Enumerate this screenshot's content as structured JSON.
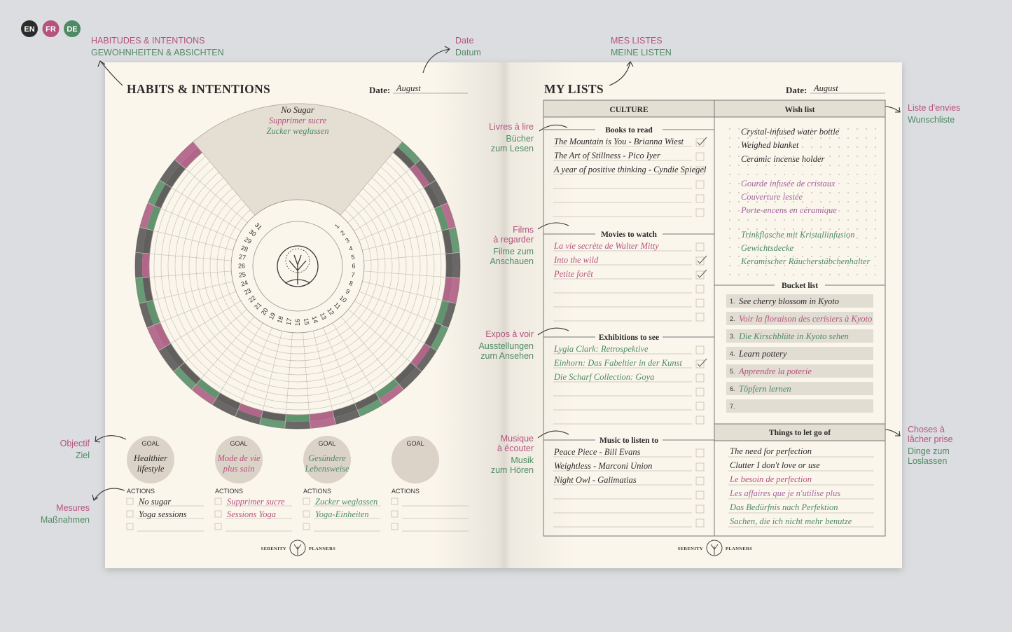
{
  "languages": [
    "EN",
    "FR",
    "DE"
  ],
  "colors": {
    "en": "#2b2b2b",
    "fr": "#b5527e",
    "de": "#4e8a63",
    "badge_en": "#2b2b2b",
    "badge_fr": "#b5527e",
    "badge_de": "#4e8a63"
  },
  "annotations": [
    {
      "fr": [
        "HABITUDES & INTENTIONS"
      ],
      "de": [
        "GEWOHNHEITEN & ABSICHTEN"
      ]
    },
    {
      "fr": [
        "Date"
      ],
      "de": [
        "Datum"
      ]
    },
    {
      "fr": [
        "MES LISTES"
      ],
      "de": [
        "MEINE LISTEN"
      ]
    },
    {
      "fr": [
        "Livres à lire"
      ],
      "de": [
        "Bücher",
        "zum Lesen"
      ]
    },
    {
      "fr": [
        "Films",
        "à regarder"
      ],
      "de": [
        "Filme zum",
        "Anschauen"
      ]
    },
    {
      "fr": [
        "Expos à voir"
      ],
      "de": [
        "Ausstellungen",
        "zum Ansehen"
      ]
    },
    {
      "fr": [
        "Musique",
        "à écouter"
      ],
      "de": [
        "Musik",
        "zum Hören"
      ]
    },
    {
      "fr": [
        "Liste d'envies"
      ],
      "de": [
        "Wunschliste"
      ]
    },
    {
      "fr": [
        "Choses à",
        "lâcher prise"
      ],
      "de": [
        "Dinge zum",
        "Loslassen"
      ]
    },
    {
      "fr": [
        "Objectif"
      ],
      "de": [
        "Ziel"
      ]
    },
    {
      "fr": [
        "Mesures"
      ],
      "de": [
        "Maßnahmen"
      ]
    }
  ],
  "left_page": {
    "title": "HABITS & INTENTIONS",
    "date_label": "Date:",
    "date": "August",
    "habit": [
      {
        "text": "No Sugar",
        "color": "#2b2b2b"
      },
      {
        "text": "Supprimer sucre",
        "color": "#b5527e"
      },
      {
        "text": "Zucker weglassen",
        "color": "#4e8a63"
      }
    ],
    "days": [
      1,
      2,
      3,
      4,
      5,
      6,
      7,
      8,
      9,
      10,
      11,
      12,
      13,
      14,
      15,
      16,
      17,
      18,
      19,
      20,
      21,
      22,
      23,
      24,
      25,
      26,
      27,
      28,
      29,
      30,
      31
    ],
    "goals": [
      {
        "label": "GOAL",
        "text": [
          "Healthier",
          "lifestyle"
        ],
        "color": "#2b2b2b",
        "actions_label": "ACTIONS",
        "actions": [
          "No sugar",
          "Yoga sessions"
        ]
      },
      {
        "label": "GOAL",
        "text": [
          "Mode de vie",
          "plus sain"
        ],
        "color": "#b5527e",
        "actions_label": "ACTIONS",
        "actions": [
          "Supprimer sucre",
          "Sessions Yoga"
        ]
      },
      {
        "label": "GOAL",
        "text": [
          "Gesündere",
          "Lebensweise"
        ],
        "color": "#4e8a63",
        "actions_label": "ACTIONS",
        "actions": [
          "Zucker weglassen",
          "Yoga-Einheiten"
        ]
      },
      {
        "label": "GOAL",
        "color": "#2b2b2b",
        "actions_label": "ACTIONS",
        "actions": []
      }
    ],
    "brand": [
      "SERENITY",
      "PLANNERS"
    ]
  },
  "right_page": {
    "title": "MY LISTS",
    "date_label": "Date:",
    "date": "August",
    "culture": {
      "header": "CULTURE",
      "sections": [
        {
          "title": "Books to read",
          "color": "#2b2b2b",
          "items": [
            "The Mountain is You - Brianna Wiest",
            "The Art of Stillness - Pico Iyer",
            "A year of positive thinking - Cyndie Spiegel"
          ],
          "checked": [
            true,
            false,
            false,
            false,
            false,
            false
          ]
        },
        {
          "title": "Movies to watch",
          "color": "#b5527e",
          "items": [
            "La vie secrète de Walter Mitty",
            "Into the wild",
            "Petite forêt"
          ],
          "checked": [
            false,
            true,
            true,
            false,
            false,
            false
          ]
        },
        {
          "title": "Exhibitions to see",
          "color": "#4e8a63",
          "items": [
            "Lygia Clark: Retrospektive",
            "Einhorn: Das Fabeltier in der Kunst",
            "Die Scharf Collection: Goya"
          ],
          "checked": [
            false,
            true,
            false,
            false,
            false,
            false
          ]
        },
        {
          "title": "Music to listen to",
          "color": "#2b2b2b",
          "items": [
            "Peace Piece - Bill Evans",
            "Weightless - Marconi Union",
            "Night Owl - Galimatias"
          ],
          "checked": [
            false,
            false,
            false,
            false,
            false,
            false
          ]
        }
      ]
    },
    "wish_list": {
      "title": "Wish list",
      "items": [
        {
          "text": "Crystal-infused water bottle",
          "color": "#2b2b2b"
        },
        {
          "text": "Weighed blanket",
          "color": "#2b2b2b"
        },
        {
          "text": "Ceramic incense holder",
          "color": "#2b2b2b"
        },
        {
          "text": "Gourde infusée de cristaux",
          "color": "#a3669f"
        },
        {
          "text": "Couverture lestée",
          "color": "#a3669f"
        },
        {
          "text": "Porte-encens en céramique",
          "color": "#a3669f"
        },
        {
          "text": "Trinkflasche mit Kristallinfusion",
          "color": "#4e8a63"
        },
        {
          "text": "Gewichtsdecke",
          "color": "#4e8a63"
        },
        {
          "text": "Keramischer Räucherstäbchenhalter",
          "color": "#4e8a63"
        }
      ]
    },
    "bucket_list": {
      "title": "Bucket list",
      "numbers": [
        "1.",
        "2.",
        "3.",
        "4.",
        "5.",
        "6.",
        "7."
      ],
      "items": [
        {
          "text": "See cherry blossom in Kyoto",
          "color": "#2b2b2b"
        },
        {
          "text": "Voir la floraison des cerisiers à Kyoto",
          "color": "#b5527e"
        },
        {
          "text": "Die Kirschblüte in Kyoto sehen",
          "color": "#4e8a63"
        },
        {
          "text": "Learn pottery",
          "color": "#2b2b2b"
        },
        {
          "text": "Apprendre la poterie",
          "color": "#b5527e"
        },
        {
          "text": "Töpfern lernen",
          "color": "#4e8a63"
        }
      ]
    },
    "let_go": {
      "title": "Things to let go of",
      "items": [
        {
          "text": "The need for perfection",
          "color": "#2b2b2b"
        },
        {
          "text": "Clutter I don't love or use",
          "color": "#2b2b2b"
        },
        {
          "text": "Le besoin de perfection",
          "color": "#b5527e"
        },
        {
          "text": "Les affaires que je n'utilise plus",
          "color": "#a3669f"
        },
        {
          "text": "Das Bedürfnis nach Perfektion",
          "color": "#4e8a63"
        },
        {
          "text": "Sachen, die ich nicht mehr benutze",
          "color": "#4e8a63"
        }
      ]
    },
    "brand": [
      "SERENITY",
      "PLANNERS"
    ]
  }
}
